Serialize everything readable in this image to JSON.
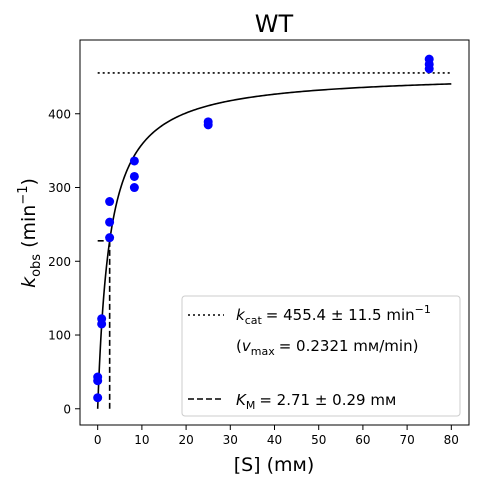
{
  "chart_data": {
    "type": "scatter",
    "title": "WT",
    "xlabel": "[S] (mм)",
    "ylabel": "k_obs (min^-1)",
    "xlim": [
      -4,
      84
    ],
    "ylim": [
      -22,
      500
    ],
    "x_ticks": [
      0,
      10,
      20,
      30,
      40,
      50,
      60,
      70,
      80
    ],
    "y_ticks": [
      0,
      100,
      200,
      300,
      400
    ],
    "grid": false,
    "legend_placement": "lower-right",
    "series": [
      {
        "kind": "points",
        "color": "#0000ff",
        "points": [
          {
            "x": 0,
            "y": 15
          },
          {
            "x": 0,
            "y": 38
          },
          {
            "x": 0,
            "y": 43
          },
          {
            "x": 0.9,
            "y": 115
          },
          {
            "x": 0.9,
            "y": 122
          },
          {
            "x": 2.7,
            "y": 232
          },
          {
            "x": 2.7,
            "y": 253
          },
          {
            "x": 2.7,
            "y": 281
          },
          {
            "x": 8.3,
            "y": 300
          },
          {
            "x": 8.3,
            "y": 315
          },
          {
            "x": 8.3,
            "y": 336
          },
          {
            "x": 25,
            "y": 385
          },
          {
            "x": 25,
            "y": 389
          },
          {
            "x": 75,
            "y": 461
          },
          {
            "x": 75,
            "y": 467
          },
          {
            "x": 75,
            "y": 474
          }
        ]
      },
      {
        "kind": "michaelis-menten-fit",
        "color": "#000000",
        "kcat": 455.4,
        "km": 2.71,
        "x_range": [
          0,
          80
        ]
      },
      {
        "kind": "kcat-line",
        "color": "#000000",
        "y": 455.4,
        "x_range": [
          0,
          80
        ]
      },
      {
        "kind": "km-marker",
        "color": "#000000",
        "x": 2.71,
        "y": 227.7,
        "x_from": 0
      }
    ],
    "legend": {
      "kcat_text": "k_cat = 455.4 ± 11.5 min^-1",
      "kcat_base": "k",
      "kcat_sub": "cat",
      "kcat_value": "= 455.4 ± 11.5 min",
      "kcat_exp": "−1",
      "vmax_open": "(",
      "vmax_base": "v",
      "vmax_sub": "max",
      "vmax_value": "= 0.2321 mм/min)",
      "km_base": "K",
      "km_sub": "M",
      "km_value": "= 2.71 ± 0.29 mм"
    },
    "axis_text": {
      "x_label": "[S] (mм)",
      "y_base": "k",
      "y_sub": "obs",
      "y_unit_open": "(min",
      "y_exp": "−1",
      "y_unit_close": ")"
    }
  }
}
